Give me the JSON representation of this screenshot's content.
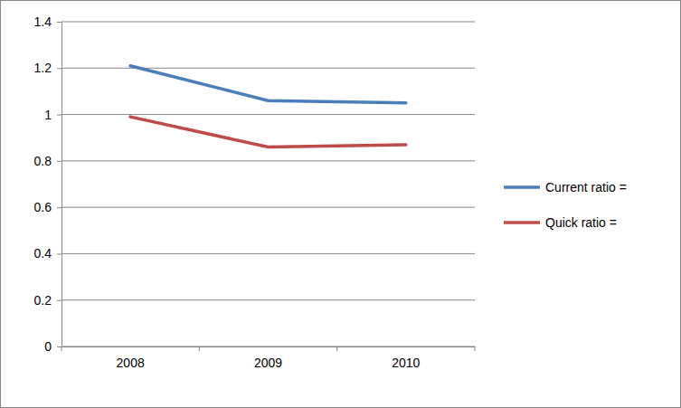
{
  "chart_data": {
    "type": "line",
    "categories": [
      "2008",
      "2009",
      "2010"
    ],
    "series": [
      {
        "name": "Current ratio =",
        "color": "#4a7ebb",
        "values": [
          1.21,
          1.06,
          1.05
        ]
      },
      {
        "name": "Quick ratio =",
        "color": "#be4b48",
        "values": [
          0.99,
          0.86,
          0.87
        ]
      }
    ],
    "ylim": [
      0,
      1.4
    ],
    "yticks": [
      0,
      0.2,
      0.4,
      0.6,
      0.8,
      1,
      1.2,
      1.4
    ],
    "grid": true,
    "legend": "right"
  }
}
